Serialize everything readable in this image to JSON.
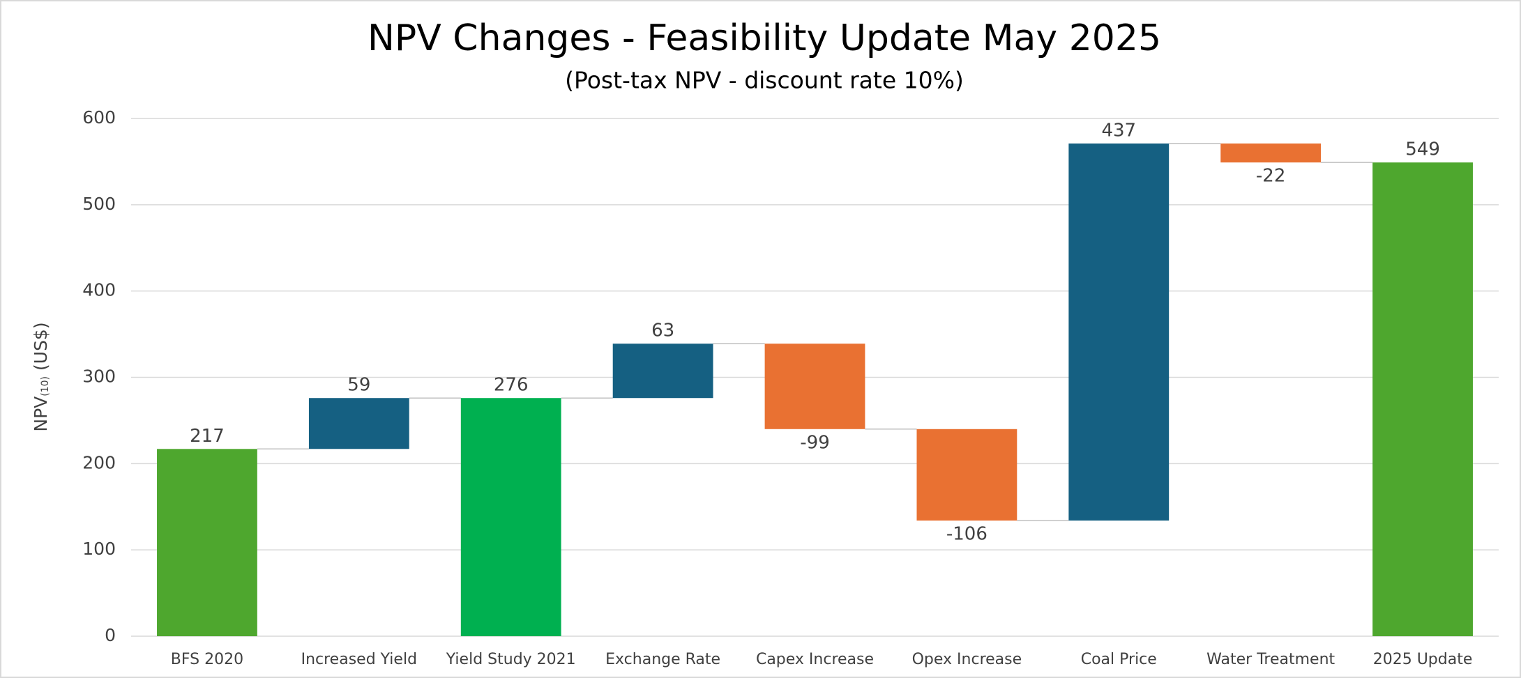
{
  "chart_data": {
    "type": "waterfall",
    "title": "NPV Changes - Feasibility Update May 2025",
    "subtitle": "(Post-tax NPV - discount rate 10%)",
    "ylabel": {
      "main": "NPV",
      "subscript": "(10)",
      "unit": "(US$)"
    },
    "categories": [
      "BFS 2020",
      "Increased Yield",
      "Yield Study 2021",
      "Exchange Rate",
      "Capex Increase",
      "Opex Increase",
      "Coal Price",
      "Water Treatment",
      "2025 Update"
    ],
    "values": [
      217,
      59,
      276,
      63,
      -99,
      -106,
      437,
      -22,
      549
    ],
    "is_total": [
      true,
      false,
      true,
      false,
      false,
      false,
      false,
      false,
      true
    ],
    "colors": [
      "#4ea72e",
      "#156082",
      "#00b050",
      "#156082",
      "#e97132",
      "#e97132",
      "#156082",
      "#e97132",
      "#4ea72e"
    ],
    "ylim": [
      0,
      600
    ],
    "yticks": [
      0,
      100,
      200,
      300,
      400,
      500,
      600
    ],
    "grid": true
  }
}
